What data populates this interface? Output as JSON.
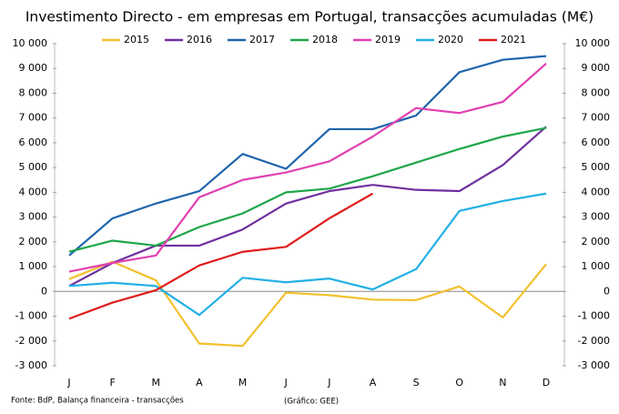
{
  "chart_data": {
    "type": "line",
    "title": "Investimento Directo - em empresas em Portugal, transacções acumuladas (M€)",
    "source": "Fonte: BdP, Balança financeira - transacções",
    "credit": "(Gráfico: GEE)",
    "categories": [
      "J",
      "F",
      "M",
      "A",
      "M",
      "J",
      "J",
      "A",
      "S",
      "O",
      "N",
      "D"
    ],
    "series": [
      {
        "name": "2015",
        "color": "#f2c12e",
        "values": [
          500,
          1200,
          450,
          -2100,
          -2200,
          -50,
          -150,
          -330,
          -350,
          200,
          -1050,
          1100
        ]
      },
      {
        "name": "2016",
        "color": "#7030a0",
        "values": [
          220,
          1150,
          1850,
          1850,
          2500,
          3550,
          4050,
          4300,
          4100,
          4050,
          5100,
          6650
        ]
      },
      {
        "name": "2017",
        "color": "#1f64ad",
        "values": [
          1450,
          2950,
          3550,
          4050,
          5550,
          4950,
          6550,
          6550,
          7100,
          8850,
          9350,
          9500
        ]
      },
      {
        "name": "2018",
        "color": "#1fa64a",
        "values": [
          1600,
          2050,
          1850,
          2600,
          3150,
          4000,
          4150,
          4650,
          5200,
          5750,
          6250,
          6600
        ]
      },
      {
        "name": "2019",
        "color": "#e040b0",
        "values": [
          800,
          1150,
          1450,
          3800,
          4500,
          4800,
          5250,
          6250,
          7400,
          7200,
          7650,
          9200
        ]
      },
      {
        "name": "2020",
        "color": "#22b0e6",
        "values": [
          220,
          350,
          220,
          -950,
          550,
          370,
          520,
          80,
          900,
          3250,
          3650,
          3950
        ]
      },
      {
        "name": "2021",
        "color": "#e01b1b",
        "values": [
          -1100,
          -450,
          50,
          1050,
          1600,
          1800,
          2950,
          3950,
          null,
          null,
          null,
          null
        ]
      }
    ],
    "ylim": [
      -3000,
      10000
    ],
    "yticks": [
      {
        "value": -3000,
        "label": "-3 000"
      },
      {
        "value": -2000,
        "label": "-2 000"
      },
      {
        "value": -1000,
        "label": "-1 000"
      },
      0,
      {
        "value": 1000,
        "label": "1 000"
      },
      {
        "value": 2000,
        "label": "2 000"
      },
      {
        "value": 3000,
        "label": "3 000"
      },
      {
        "value": 4000,
        "label": "4 000"
      },
      {
        "value": 5000,
        "label": "5 000"
      },
      {
        "value": 6000,
        "label": "6 000"
      },
      {
        "value": 7000,
        "label": "7 000"
      },
      {
        "value": 8000,
        "label": "8 000"
      },
      {
        "value": 9000,
        "label": "9 000"
      },
      {
        "value": 10000,
        "label": "10 000"
      }
    ],
    "y2lim": [
      -3000,
      10000
    ],
    "y2ticks": [
      {
        "value": -3000,
        "label": "-3 000"
      },
      {
        "value": -2000,
        "label": "-2 000"
      },
      {
        "value": -1000,
        "label": "-1 000"
      },
      0,
      {
        "value": 1000,
        "label": "1 000"
      },
      {
        "value": 2000,
        "label": "2 000"
      },
      {
        "value": 3000,
        "label": "3 000"
      },
      {
        "value": 4000,
        "label": "4 000"
      },
      {
        "value": 5000,
        "label": "5 000"
      },
      {
        "value": 6000,
        "label": "6 000"
      },
      {
        "value": 7000,
        "label": "7 000"
      },
      {
        "value": 8000,
        "label": "8 000"
      },
      {
        "value": 9000,
        "label": "9 000"
      },
      {
        "value": 10000,
        "label": "10 000"
      }
    ],
    "grid": false,
    "legend": "top"
  }
}
